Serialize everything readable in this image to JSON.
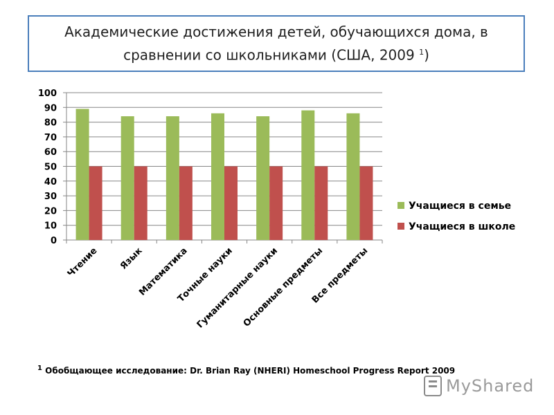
{
  "title": {
    "main": "Академические достижения детей, обучающихся дома, в сравнении со школьниками (США, 2009",
    "sup": "1",
    "close": ")"
  },
  "chart_data": {
    "type": "bar",
    "categories": [
      "Чтение",
      "Язык",
      "Математика",
      "Точные науки",
      "Гуманитарные науки",
      "Основные предметы",
      "Все предметы"
    ],
    "series": [
      {
        "name": "Учащиеся в семье",
        "values": [
          89,
          84,
          84,
          86,
          84,
          88,
          86
        ],
        "color": "#9bbb59"
      },
      {
        "name": "Учащиеся в школе",
        "values": [
          50,
          50,
          50,
          50,
          50,
          50,
          50
        ],
        "color": "#c0504d"
      }
    ],
    "ylim": [
      0,
      100
    ],
    "yticks": [
      0,
      10,
      20,
      30,
      40,
      50,
      60,
      70,
      80,
      90,
      100
    ],
    "grid": true,
    "legend": "right"
  },
  "footnote": {
    "sup": "1",
    "text": " Обобщающее исследование: Dr. Brian Ray (NHERI) Homeschool Progress Report 2009"
  },
  "watermark": {
    "text": "MyShared",
    "icon": "presentation-icon"
  }
}
